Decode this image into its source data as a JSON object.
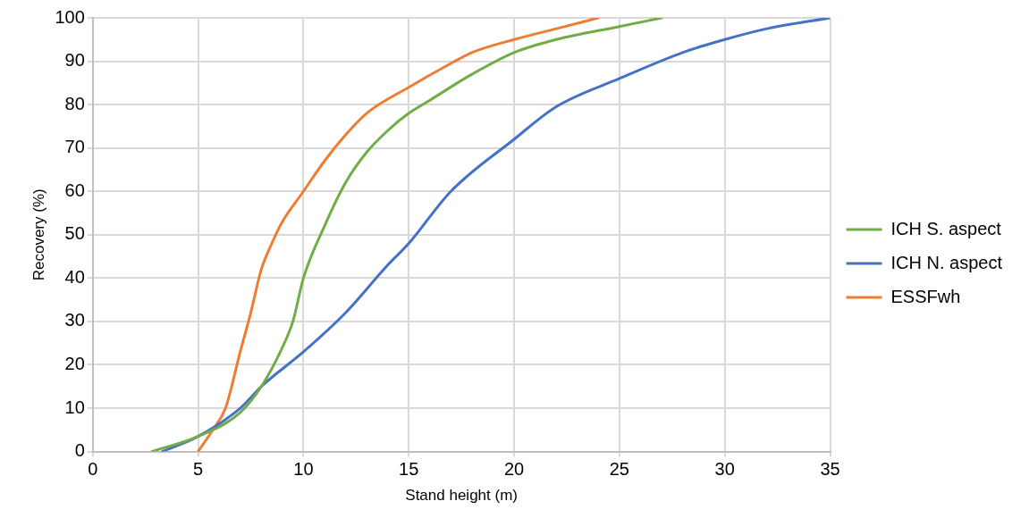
{
  "chart_data": {
    "type": "line",
    "xlabel": "Stand height (m)",
    "ylabel": "Recovery (%)",
    "xlim": [
      0,
      35
    ],
    "xticks": [
      0,
      5,
      10,
      15,
      20,
      25,
      30,
      35
    ],
    "ylim": [
      0,
      100
    ],
    "yticks": [
      0,
      10,
      20,
      30,
      40,
      50,
      60,
      70,
      80,
      90,
      100
    ],
    "grid": true,
    "legend": "right",
    "marker": "none",
    "line_style": "solid",
    "series": [
      {
        "name": "ICH S. aspect",
        "color": "#70ad47",
        "x": [
          2.8,
          5,
          7,
          8,
          9,
          9.5,
          10,
          11,
          12,
          13,
          14,
          15,
          16,
          18,
          20,
          22,
          25,
          27
        ],
        "values": [
          0,
          3.5,
          9,
          15,
          24,
          30,
          40,
          52,
          62,
          69,
          74,
          78,
          81,
          87,
          92,
          95,
          98,
          100
        ]
      },
      {
        "name": "ICH N. aspect",
        "color": "#4472c4",
        "x": [
          3.3,
          5,
          7,
          8,
          10,
          12,
          14,
          15,
          17,
          20,
          22,
          25,
          28,
          30,
          32,
          35
        ],
        "values": [
          0,
          3.5,
          10,
          15,
          23,
          32,
          43,
          48,
          60,
          72,
          79.5,
          86,
          92,
          95,
          97.5,
          100
        ]
      },
      {
        "name": "ESSFwh",
        "color": "#ed7d31",
        "x": [
          5,
          5.7,
          6.3,
          7,
          7.5,
          8,
          8.5,
          9,
          10,
          11,
          12,
          13,
          15,
          17,
          18,
          20,
          22,
          24
        ],
        "values": [
          0,
          5,
          10,
          23,
          32,
          42,
          48,
          53,
          60,
          67,
          73,
          78,
          84,
          89.5,
          92,
          95,
          97.5,
          100
        ]
      }
    ]
  }
}
